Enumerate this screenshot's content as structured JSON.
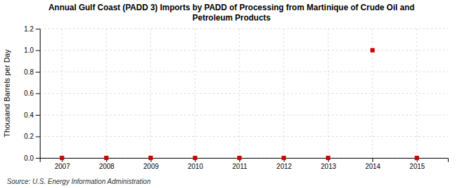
{
  "chart_data": {
    "type": "scatter",
    "title": "Annual Gulf Coast (PADD 3) Imports by PADD of Processing from Martinique of Crude Oil and\nPetroleum Products",
    "ylabel": "Thousand Barrels per Day",
    "source": "Source: U.S. Energy Information Administration",
    "x": [
      2007,
      2008,
      2009,
      2010,
      2011,
      2012,
      2013,
      2014,
      2015
    ],
    "values": [
      0.0,
      0.0,
      0.0,
      0.0,
      0.0,
      0.0,
      0.0,
      1.0,
      0.0
    ],
    "color": "#CC0000",
    "marker": "square",
    "xlim": [
      2006.5,
      2015.7
    ],
    "xticks": [
      2007,
      2008,
      2009,
      2010,
      2011,
      2012,
      2013,
      2014,
      2015
    ],
    "ylim": [
      0.0,
      1.2
    ],
    "yticks": [
      {
        "value": 0.0,
        "label": "0.0"
      },
      0.2,
      0.4,
      0.6,
      0.8,
      {
        "value": 1.0,
        "label": "1.0"
      },
      1.2
    ],
    "grid": true
  }
}
